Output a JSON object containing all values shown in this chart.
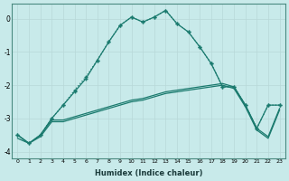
{
  "xlabel": "Humidex (Indice chaleur)",
  "background_color": "#c8eaea",
  "grid_color": "#b8d8d8",
  "line_color": "#1a7a6e",
  "xlim": [
    -0.5,
    23.5
  ],
  "ylim": [
    -4.2,
    0.45
  ],
  "yticks": [
    0,
    -1,
    -2,
    -3,
    -4
  ],
  "xticks": [
    0,
    1,
    2,
    3,
    4,
    5,
    6,
    7,
    8,
    9,
    10,
    11,
    12,
    13,
    14,
    15,
    16,
    17,
    18,
    19,
    20,
    21,
    22,
    23
  ],
  "line1_x": [
    0,
    1,
    2,
    3,
    4,
    5,
    6,
    7,
    8,
    9,
    10,
    11,
    12,
    13,
    14,
    15,
    16,
    17,
    18,
    19,
    20,
    21,
    22,
    23
  ],
  "line1_y": [
    -3.5,
    -3.75,
    -3.5,
    -3.0,
    -2.6,
    -2.15,
    -1.75,
    -1.25,
    -0.7,
    -0.2,
    0.05,
    -0.1,
    0.05,
    0.25,
    -0.15,
    -0.4,
    -0.85,
    -1.35,
    -2.05,
    -2.05,
    -2.6,
    -3.3,
    -2.6,
    -2.6
  ],
  "line1_style": "dotted",
  "line2_x": [
    0,
    1,
    2,
    3,
    4,
    5,
    6,
    7,
    8,
    9,
    10,
    11,
    12,
    13,
    14,
    15,
    16,
    17,
    18,
    19,
    20,
    21,
    22,
    23
  ],
  "line2_y": [
    -3.5,
    -3.75,
    -3.5,
    -3.0,
    -2.6,
    -2.2,
    -1.8,
    -1.25,
    -0.7,
    -0.2,
    0.05,
    -0.1,
    0.05,
    0.25,
    -0.15,
    -0.4,
    -0.85,
    -1.35,
    -2.05,
    -2.05,
    -2.6,
    -3.3,
    -2.6,
    -2.6
  ],
  "line2_style": "solid",
  "line3_x": [
    0,
    1,
    2,
    3,
    4,
    5,
    6,
    7,
    8,
    9,
    10,
    11,
    12,
    13,
    14,
    15,
    16,
    17,
    18,
    19,
    20,
    21,
    22,
    23
  ],
  "line3_y": [
    -3.5,
    -3.75,
    -3.5,
    -3.05,
    -3.05,
    -2.95,
    -2.85,
    -2.75,
    -2.65,
    -2.55,
    -2.45,
    -2.4,
    -2.3,
    -2.2,
    -2.15,
    -2.1,
    -2.05,
    -2.0,
    -1.95,
    -2.05,
    -2.6,
    -3.3,
    -3.55,
    -2.7
  ],
  "line3_style": "solid",
  "line4_x": [
    0,
    1,
    2,
    3,
    4,
    5,
    6,
    7,
    8,
    9,
    10,
    11,
    12,
    13,
    14,
    15,
    16,
    17,
    18,
    19,
    20,
    21,
    22,
    23
  ],
  "line4_y": [
    -3.6,
    -3.75,
    -3.55,
    -3.1,
    -3.1,
    -3.0,
    -2.9,
    -2.8,
    -2.7,
    -2.6,
    -2.5,
    -2.45,
    -2.35,
    -2.25,
    -2.2,
    -2.15,
    -2.1,
    -2.05,
    -2.0,
    -2.1,
    -2.65,
    -3.35,
    -3.6,
    -2.75
  ],
  "line4_style": "solid"
}
